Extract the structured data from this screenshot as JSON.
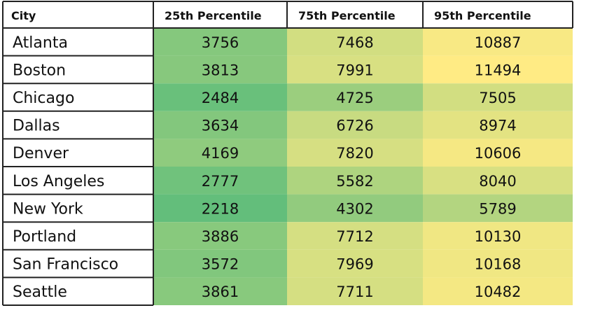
{
  "chart_data": {
    "type": "table",
    "headers": [
      "City",
      "25th Percentile",
      "75th Percentile",
      "95th Percentile"
    ],
    "rows": [
      {
        "city": "Atlanta",
        "values": [
          3756,
          7468,
          10887
        ]
      },
      {
        "city": "Boston",
        "values": [
          3813,
          7991,
          11494
        ]
      },
      {
        "city": "Chicago",
        "values": [
          2484,
          4725,
          7505
        ]
      },
      {
        "city": "Dallas",
        "values": [
          3634,
          6726,
          8974
        ]
      },
      {
        "city": "Denver",
        "values": [
          4169,
          7820,
          10606
        ]
      },
      {
        "city": "Los Angeles",
        "values": [
          2777,
          5582,
          8040
        ]
      },
      {
        "city": "New York",
        "values": [
          2218,
          4302,
          5789
        ]
      },
      {
        "city": "Portland",
        "values": [
          3886,
          7712,
          10130
        ]
      },
      {
        "city": "San Francisco",
        "values": [
          3572,
          7969,
          10168
        ]
      },
      {
        "city": "Seattle",
        "values": [
          3861,
          7711,
          10482
        ]
      }
    ],
    "color_scale": {
      "low_color": "#63be7b",
      "mid_color": "#cbdc81",
      "high_color": "#ffeb84",
      "min": 2218,
      "max": 11494
    }
  }
}
